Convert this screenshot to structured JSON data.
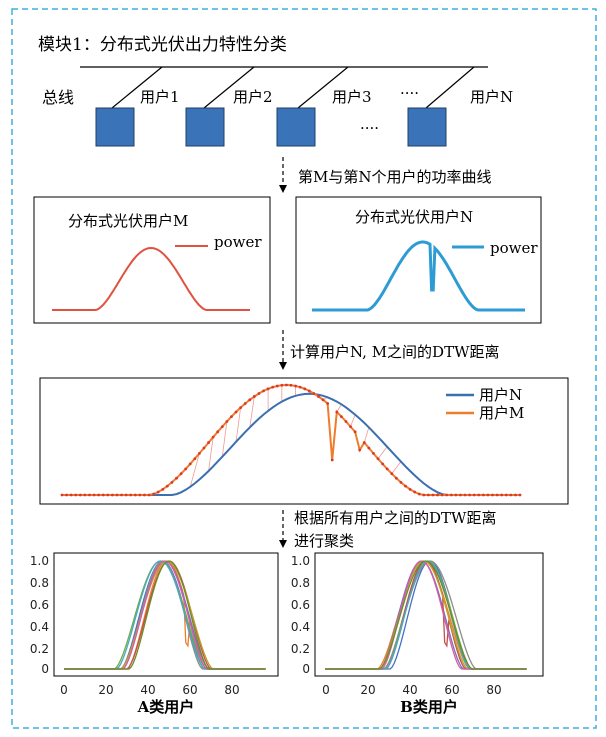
{
  "module_title": "模块1：分布式光伏出力特性分类",
  "bus_label": "总线",
  "users": [
    "用户1",
    "用户2",
    "用户3",
    "····",
    "用户N"
  ],
  "blocks_ellipsis": "····",
  "step1_label": "第M与第N个用户的功率曲线",
  "panel_m": {
    "title": "分布式光伏用户M",
    "legend": "power",
    "color": "#e0523f"
  },
  "panel_n": {
    "title": "分布式光伏用户N",
    "legend": "power",
    "color": "#2d9bd4"
  },
  "step2_label": "计算用户N, M之间的DTW距离",
  "dtw": {
    "legend_n": "用户N",
    "legend_m": "用户M",
    "color_n": "#3a6fb0",
    "color_m": "#ef7c2b",
    "match_color": "#e8433c"
  },
  "step3_label_line1": "根据所有用户之间的DTW距离",
  "step3_label_line2": "进行聚类",
  "cluster_a": {
    "caption": "A类用户",
    "yticks": [
      "1.0",
      "0.8",
      "0.6",
      "0.4",
      "0.2",
      "0"
    ],
    "xticks": [
      "0",
      "20",
      "40",
      "60",
      "80"
    ]
  },
  "cluster_b": {
    "caption": "B类用户",
    "yticks": [
      "1.0",
      "0.8",
      "0.6",
      "0.4",
      "0.2",
      "0"
    ],
    "xticks": [
      "0",
      "20",
      "40",
      "60",
      "80"
    ]
  },
  "colors": {
    "frame": "#3bb2df",
    "block": "#3a73b8",
    "series": [
      "#4472c4",
      "#ed7d31",
      "#70ad47",
      "#7f6fb8",
      "#c0504d",
      "#8c8c8c",
      "#bfa22c",
      "#48a9c5",
      "#d45fa8",
      "#6b8e23"
    ]
  }
}
